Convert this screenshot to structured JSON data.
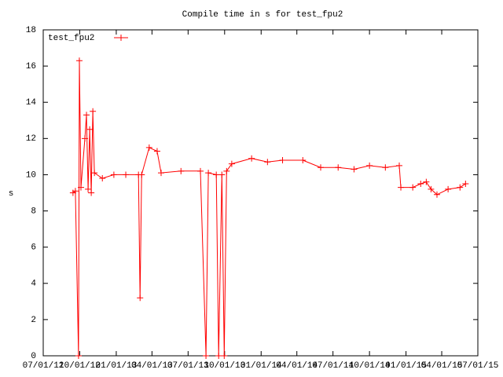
{
  "chart_data": {
    "type": "line",
    "title": "Compile time in s for test_fpu2",
    "y_label": "s",
    "legend": "top-left",
    "x": [
      "2012-09-14",
      "2012-09-20",
      "2012-09-28",
      "2012-09-30",
      "2012-10-04",
      "2012-10-14",
      "2012-10-18",
      "2012-10-22",
      "2012-10-26",
      "2012-10-30",
      "2012-11-03",
      "2012-11-07",
      "2012-11-27",
      "2012-12-26",
      "2013-01-25",
      "2013-02-26",
      "2013-03-02",
      "2013-03-06",
      "2013-03-25",
      "2013-04-14",
      "2013-04-24",
      "2013-06-13",
      "2013-08-01",
      "2013-08-15",
      "2013-08-21",
      "2013-09-10",
      "2013-09-16",
      "2013-09-24",
      "2013-09-30",
      "2013-10-06",
      "2013-10-19",
      "2013-12-08",
      "2014-01-17",
      "2014-02-24",
      "2014-04-16",
      "2014-05-31",
      "2014-07-14",
      "2014-08-23",
      "2014-10-01",
      "2014-11-10",
      "2014-12-15",
      "2014-12-19",
      "2015-01-18",
      "2015-02-07",
      "2015-02-21",
      "2015-03-05",
      "2015-03-20",
      "2015-04-17",
      "2015-05-17",
      "2015-05-31"
    ],
    "series": [
      {
        "name": "test_fpu2",
        "color": "#ff0000",
        "values": [
          9.0,
          9.1,
          0,
          16.3,
          9.3,
          12.0,
          13.3,
          9.2,
          12.5,
          9.0,
          13.5,
          10.1,
          9.8,
          10.0,
          10.0,
          10.0,
          3.2,
          10.0,
          11.5,
          11.3,
          10.1,
          10.2,
          10.2,
          0,
          10.1,
          10.0,
          0,
          10.0,
          0,
          10.2,
          10.6,
          10.9,
          10.7,
          10.8,
          10.8,
          10.4,
          10.4,
          10.3,
          10.5,
          10.4,
          10.5,
          9.3,
          9.3,
          9.5,
          9.6,
          9.2,
          8.9,
          9.2,
          9.3,
          9.5
        ]
      }
    ],
    "xlim": [
      "2012-07-01",
      "2015-07-01"
    ],
    "xticks": [
      {
        "value": "2012-07-01",
        "label": "07/01/12"
      },
      {
        "value": "2012-10-01",
        "label": "10/01/12"
      },
      {
        "value": "2013-01-01",
        "label": "01/01/13"
      },
      {
        "value": "2013-04-01",
        "label": "04/01/13"
      },
      {
        "value": "2013-07-01",
        "label": "07/01/13"
      },
      {
        "value": "2013-10-01",
        "label": "10/01/13"
      },
      {
        "value": "2014-01-01",
        "label": "01/01/14"
      },
      {
        "value": "2014-04-01",
        "label": "04/01/14"
      },
      {
        "value": "2014-07-01",
        "label": "07/01/14"
      },
      {
        "value": "2014-10-01",
        "label": "10/01/14"
      },
      {
        "value": "2015-01-01",
        "label": "01/01/15"
      },
      {
        "value": "2015-04-01",
        "label": "04/01/15"
      },
      {
        "value": "2015-07-01",
        "label": "07/01/15"
      }
    ],
    "ylim": [
      0,
      18
    ],
    "yticks": [
      0,
      2,
      4,
      6,
      8,
      10,
      12,
      14,
      16,
      18
    ]
  }
}
